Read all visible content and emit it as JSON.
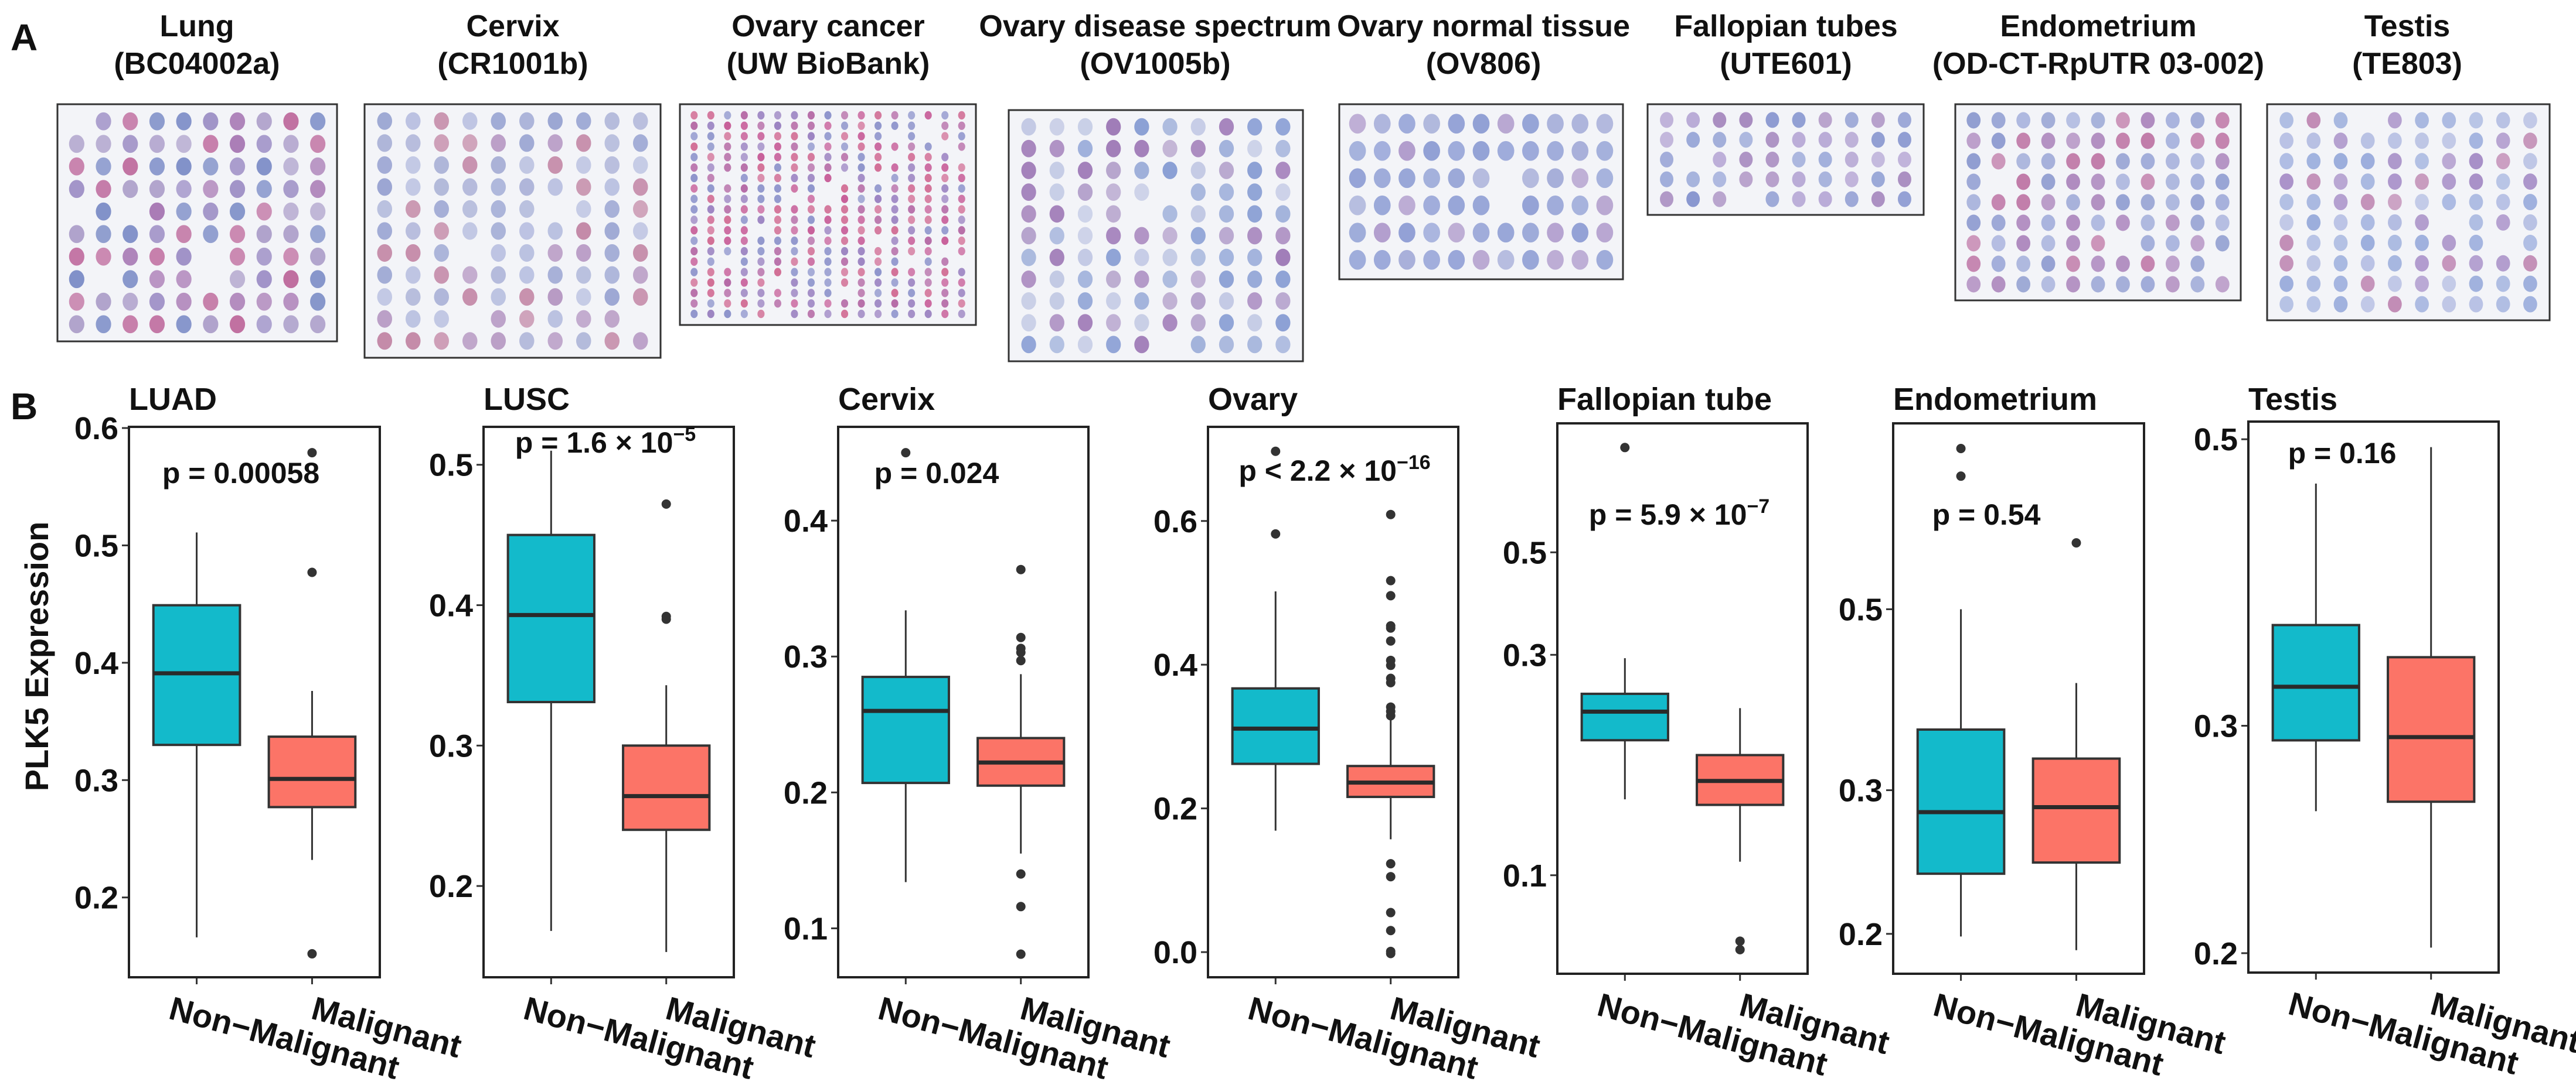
{
  "panel_labels": {
    "a": "A",
    "b": "B"
  },
  "tma_slides": [
    {
      "tissue": "Lung",
      "id": "(BC04002a)"
    },
    {
      "tissue": "Cervix",
      "id": "(CR1001b)"
    },
    {
      "tissue": "Ovary cancer",
      "id": "(UW BioBank)"
    },
    {
      "tissue": "Ovary disease spectrum",
      "id": "(OV1005b)"
    },
    {
      "tissue": "Ovary normal tissue",
      "id": "(OV806)"
    },
    {
      "tissue": "Fallopian tubes",
      "id": "(UTE601)"
    },
    {
      "tissue": "Endometrium",
      "id": "(OD-CT-RpUTR 03-002)"
    },
    {
      "tissue": "Testis",
      "id": "(TE803)"
    }
  ],
  "ylabel": "PLK5 Expression",
  "colors": {
    "non_malignant": "#13BACB",
    "malignant": "#FC7467",
    "outline": "#333333"
  },
  "chart_data": [
    {
      "type": "box",
      "title": "LUAD",
      "p_label": "p = 0.00058",
      "p_exp": "",
      "yscale": "linear",
      "ylim": [
        0.132,
        0.601
      ],
      "yticks": [
        0.2,
        0.3,
        0.4,
        0.5,
        0.6
      ],
      "ytick_labels": [
        "0.2",
        "0.3",
        "0.4",
        "0.5",
        "0.6"
      ],
      "categories": [
        "Non−Malignant",
        "Malignant"
      ],
      "series": [
        {
          "name": "Non−Malignant",
          "min": 0.166,
          "q1": 0.33,
          "median": 0.391,
          "q3": 0.449,
          "max": 0.511,
          "outliers": []
        },
        {
          "name": "Malignant",
          "min": 0.232,
          "q1": 0.277,
          "median": 0.301,
          "q3": 0.337,
          "max": 0.376,
          "outliers": [
            0.579,
            0.477,
            0.152
          ]
        }
      ]
    },
    {
      "type": "box",
      "title": "LUSC",
      "p_label": "p = 1.6 × 10",
      "p_exp": "−5",
      "yscale": "linear",
      "ylim": [
        0.135,
        0.527
      ],
      "yticks": [
        0.2,
        0.3,
        0.4,
        0.5
      ],
      "ytick_labels": [
        "0.2",
        "0.3",
        "0.4",
        "0.5"
      ],
      "categories": [
        "Non−Malignant",
        "Malignant"
      ],
      "series": [
        {
          "name": "Non−Malignant",
          "min": 0.168,
          "q1": 0.331,
          "median": 0.393,
          "q3": 0.45,
          "max": 0.51,
          "outliers": []
        },
        {
          "name": "Malignant",
          "min": 0.153,
          "q1": 0.24,
          "median": 0.264,
          "q3": 0.3,
          "max": 0.343,
          "outliers": [
            0.472,
            0.392,
            0.39
          ]
        }
      ]
    },
    {
      "type": "box",
      "title": "Cervix",
      "p_label": "p = 0.024",
      "p_exp": "",
      "yscale": "linear",
      "ylim": [
        0.064,
        0.469
      ],
      "yticks": [
        0.1,
        0.2,
        0.3,
        0.4
      ],
      "ytick_labels": [
        "0.1",
        "0.2",
        "0.3",
        "0.4"
      ],
      "categories": [
        "Non−Malignant",
        "Malignant"
      ],
      "series": [
        {
          "name": "Non−Malignant",
          "min": 0.134,
          "q1": 0.207,
          "median": 0.26,
          "q3": 0.285,
          "max": 0.334,
          "outliers": [
            0.45
          ]
        },
        {
          "name": "Malignant",
          "min": 0.155,
          "q1": 0.205,
          "median": 0.222,
          "q3": 0.24,
          "max": 0.287,
          "outliers": [
            0.364,
            0.314,
            0.306,
            0.303,
            0.297,
            0.14,
            0.116,
            0.081
          ]
        }
      ]
    },
    {
      "type": "box",
      "title": "Ovary",
      "p_label": "p < 2.2 × 10",
      "p_exp": "−16",
      "yscale": "linear",
      "ylim": [
        -0.035,
        0.731
      ],
      "yticks": [
        0.0,
        0.2,
        0.4,
        0.6
      ],
      "ytick_labels": [
        "0.0",
        "0.2",
        "0.4",
        "0.6"
      ],
      "categories": [
        "Non−Malignant",
        "Malignant"
      ],
      "series": [
        {
          "name": "Non−Malignant",
          "min": 0.169,
          "q1": 0.262,
          "median": 0.311,
          "q3": 0.367,
          "max": 0.502,
          "outliers": [
            0.697,
            0.582
          ]
        },
        {
          "name": "Malignant",
          "min": 0.157,
          "q1": 0.216,
          "median": 0.236,
          "q3": 0.259,
          "max": 0.323,
          "outliers": [
            0.609,
            0.517,
            0.496,
            0.454,
            0.451,
            0.433,
            0.406,
            0.399,
            0.381,
            0.375,
            0.341,
            0.335,
            0.329,
            0.123,
            0.105,
            0.055,
            0.03,
            0.001,
            -0.002
          ]
        }
      ]
    },
    {
      "type": "box",
      "title": "Fallopian tube",
      "p_label": "p = 5.9 × 10",
      "p_exp": "−7",
      "yscale": "log10",
      "ylim": [
        0.0612,
        0.951
      ],
      "yticks": [
        0.1,
        0.3,
        0.5
      ],
      "ytick_labels": [
        "0.1",
        "0.3",
        "0.5"
      ],
      "categories": [
        "Non−Malignant",
        "Malignant"
      ],
      "series": [
        {
          "name": "Non−Malignant",
          "min": 0.146,
          "q1": 0.196,
          "median": 0.226,
          "q3": 0.247,
          "max": 0.295,
          "outliers": [
            0.843
          ]
        },
        {
          "name": "Malignant",
          "min": 0.107,
          "q1": 0.142,
          "median": 0.16,
          "q3": 0.182,
          "max": 0.23,
          "outliers": [
            0.072,
            0.069
          ]
        }
      ]
    },
    {
      "type": "box",
      "title": "Endometrium",
      "p_label": "p = 0.54",
      "p_exp": "",
      "yscale": "log10",
      "ylim": [
        0.1787,
        0.845
      ],
      "yticks": [
        0.2,
        0.3,
        0.5
      ],
      "ytick_labels": [
        "0.2",
        "0.3",
        "0.5"
      ],
      "categories": [
        "Non−Malignant",
        "Malignant"
      ],
      "series": [
        {
          "name": "Non−Malignant",
          "min": 0.1985,
          "q1": 0.237,
          "median": 0.282,
          "q3": 0.356,
          "max": 0.5,
          "outliers": [
            0.787,
            0.728
          ]
        },
        {
          "name": "Malignant",
          "min": 0.191,
          "q1": 0.2446,
          "median": 0.286,
          "q3": 0.328,
          "max": 0.406,
          "outliers": [
            0.603
          ]
        }
      ]
    },
    {
      "type": "box",
      "title": "Testis",
      "p_label": "p = 0.16",
      "p_exp": "",
      "yscale": "log10",
      "ylim": [
        0.1932,
        0.516
      ],
      "yticks": [
        0.2,
        0.3,
        0.5
      ],
      "ytick_labels": [
        "0.2",
        "0.3",
        "0.5"
      ],
      "categories": [
        "Non−Malignant",
        "Malignant"
      ],
      "series": [
        {
          "name": "Non−Malignant",
          "min": 0.2576,
          "q1": 0.2923,
          "median": 0.3216,
          "q3": 0.359,
          "max": 0.462,
          "outliers": []
        },
        {
          "name": "Malignant",
          "min": 0.202,
          "q1": 0.262,
          "median": 0.294,
          "q3": 0.339,
          "max": 0.493,
          "outliers": []
        }
      ]
    }
  ]
}
